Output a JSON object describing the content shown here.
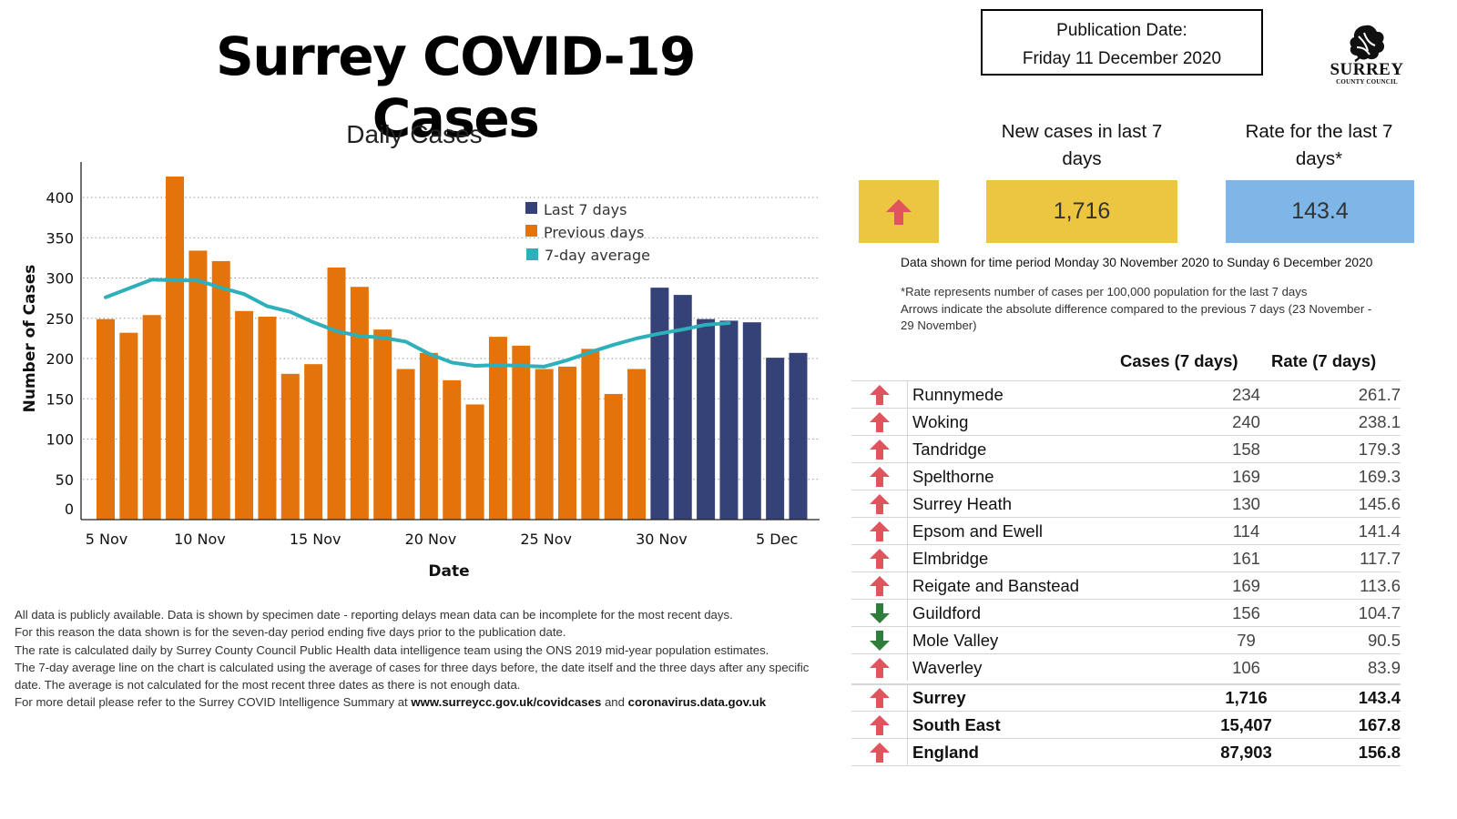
{
  "header": {
    "title": "Surrey COVID-19 Cases",
    "publication_label": "Publication Date:",
    "publication_date": "Friday 11 December 2020",
    "logo_name": "SURREY",
    "logo_sub": "COUNTY COUNCIL",
    "logo_icon": "oak-leaf-icon"
  },
  "colors": {
    "last7": "#354277",
    "previous": "#E5730B",
    "average": "#2EB0BA",
    "yellow_box": "#ECC641",
    "blue_box": "#7EB6E7",
    "arrow_up": "#E0545E",
    "arrow_down": "#2E7D3A"
  },
  "chart_data": {
    "type": "bar",
    "title": "Daily Cases",
    "xlabel": "Date",
    "ylabel": "Number of Cases",
    "ylim": [
      0,
      440
    ],
    "yticks": [
      0,
      50,
      100,
      150,
      200,
      250,
      300,
      350,
      400
    ],
    "grid": true,
    "legend_position": "top-center",
    "x_tick_labels": [
      {
        "label": "5 Nov",
        "date": "5 Nov"
      },
      {
        "label": "10 Nov",
        "date": "10 Nov"
      },
      {
        "label": "15 Nov",
        "date": "15 Nov"
      },
      {
        "label": "20 Nov",
        "date": "20 Nov"
      },
      {
        "label": "25 Nov",
        "date": "25 Nov"
      },
      {
        "label": "30 Nov",
        "date": "30 Nov"
      },
      {
        "label": "5 Dec",
        "date": "5 Dec"
      }
    ],
    "categories": [
      "6 Nov",
      "7 Nov",
      "8 Nov",
      "9 Nov",
      "10 Nov",
      "11 Nov",
      "12 Nov",
      "13 Nov",
      "14 Nov",
      "15 Nov",
      "16 Nov",
      "17 Nov",
      "18 Nov",
      "19 Nov",
      "20 Nov",
      "21 Nov",
      "22 Nov",
      "23 Nov",
      "24 Nov",
      "25 Nov",
      "26 Nov",
      "27 Nov",
      "28 Nov",
      "29 Nov",
      "30 Nov",
      "1 Dec",
      "2 Dec",
      "3 Dec",
      "4 Dec",
      "5 Dec",
      "6 Dec"
    ],
    "series": [
      {
        "name": "Previous days",
        "type": "bar",
        "values": [
          249,
          232,
          254,
          426,
          334,
          321,
          259,
          252,
          181,
          193,
          313,
          289,
          236,
          187,
          207,
          173,
          143,
          227,
          216,
          187,
          190,
          212,
          156,
          187,
          null,
          null,
          null,
          null,
          null,
          null,
          null
        ]
      },
      {
        "name": "Last 7 days",
        "type": "bar",
        "values": [
          null,
          null,
          null,
          null,
          null,
          null,
          null,
          null,
          null,
          null,
          null,
          null,
          null,
          null,
          null,
          null,
          null,
          null,
          null,
          null,
          null,
          null,
          null,
          null,
          288,
          279,
          249,
          247,
          245,
          201,
          207
        ]
      },
      {
        "name": "7-day average",
        "type": "line",
        "values": [
          276,
          287,
          298,
          297,
          297,
          288,
          280,
          265,
          258,
          245,
          234,
          228,
          226,
          221,
          206,
          195,
          191,
          192,
          191,
          190,
          198,
          208,
          217,
          225,
          231,
          236,
          242,
          244,
          null,
          null,
          null
        ]
      }
    ],
    "legend": [
      "Last 7 days",
      "Previous days",
      "7-day average"
    ]
  },
  "footnotes": {
    "l1": "All data is publicly available. Data is shown by specimen date - reporting delays mean data can be incomplete for the most recent days.",
    "l2": "For this reason the data shown is for the seven-day period ending five days prior to the publication date.",
    "l3": "The rate is calculated daily by Surrey County Council Public Health data intelligence team using the ONS 2019 mid-year population estimates.",
    "l4": "The 7-day average line on the chart is calculated using the average of cases for three days before, the date itself and the three days after any specific date. The average is not calculated for the most recent three dates as there is not enough data.",
    "l5_pre": "For more detail please refer to the Surrey COVID Intelligence Summary at ",
    "link1": "www.surreycc.gov.uk/covidcases",
    "l5_mid": " and ",
    "link2": "coronavirus.data.gov.uk"
  },
  "kpis": {
    "trend_icon": "arrow-up-icon",
    "new_cases_label": "New cases in last 7 days",
    "new_cases_value": "1,716",
    "rate_label": "Rate for the last 7 days*",
    "rate_value": "143.4"
  },
  "period_text": "Data shown for time period Monday 30 November 2020 to Sunday 6 December 2020",
  "notes": {
    "rate_note": "*Rate represents number of cases per 100,000 population for the last 7 days",
    "arrow_note": "Arrows indicate the absolute difference compared to the previous 7 days (23 November - 29 November)"
  },
  "table": {
    "col_cases": "Cases  (7 days)",
    "col_rate": "Rate (7 days)",
    "rows": [
      {
        "name": "Runnymede",
        "cases": "234",
        "rate": "261.7",
        "trend": "up"
      },
      {
        "name": "Woking",
        "cases": "240",
        "rate": "238.1",
        "trend": "up"
      },
      {
        "name": "Tandridge",
        "cases": "158",
        "rate": "179.3",
        "trend": "up"
      },
      {
        "name": "Spelthorne",
        "cases": "169",
        "rate": "169.3",
        "trend": "up"
      },
      {
        "name": "Surrey Heath",
        "cases": "130",
        "rate": "145.6",
        "trend": "up"
      },
      {
        "name": "Epsom and Ewell",
        "cases": "114",
        "rate": "141.4",
        "trend": "up"
      },
      {
        "name": "Elmbridge",
        "cases": "161",
        "rate": "117.7",
        "trend": "up"
      },
      {
        "name": "Reigate and Banstead",
        "cases": "169",
        "rate": "113.6",
        "trend": "up"
      },
      {
        "name": "Guildford",
        "cases": "156",
        "rate": "104.7",
        "trend": "down"
      },
      {
        "name": "Mole Valley",
        "cases": "79",
        "rate": "90.5",
        "trend": "down"
      },
      {
        "name": "Waverley",
        "cases": "106",
        "rate": "83.9",
        "trend": "up"
      }
    ],
    "totals": [
      {
        "name": "Surrey",
        "cases": "1,716",
        "rate": "143.4",
        "trend": "up"
      },
      {
        "name": "South East",
        "cases": "15,407",
        "rate": "167.8",
        "trend": "up"
      },
      {
        "name": "England",
        "cases": "87,903",
        "rate": "156.8",
        "trend": "up"
      }
    ]
  }
}
